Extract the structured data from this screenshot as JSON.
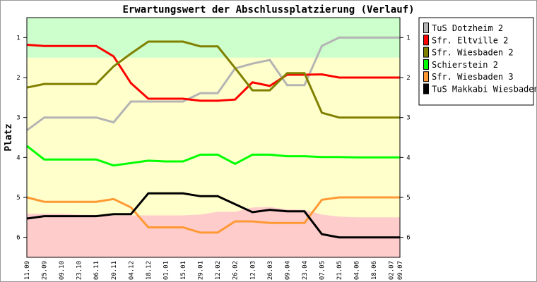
{
  "chart_data": {
    "type": "line",
    "title": "Erwartungswert der Abschlussplatzierung (Verlauf)",
    "xlabel": "",
    "ylabel": "Platz",
    "ylim": [
      0.5,
      6.5
    ],
    "y_inverted": true,
    "yticks": [
      1,
      2,
      3,
      4,
      5,
      6
    ],
    "grid": false,
    "legend_position": "right",
    "x": [
      "11.09",
      "25.09",
      "09.10",
      "23.10",
      "06.11",
      "20.11",
      "04.12",
      "18.12",
      "01.01",
      "15.01",
      "29.01",
      "12.02",
      "26.02",
      "12.03",
      "26.03",
      "09.04",
      "23.04",
      "07.05",
      "21.05",
      "04.06",
      "18.06",
      "02.07",
      "09.07"
    ],
    "x_days": [
      0,
      14,
      28,
      42,
      56,
      70,
      84,
      98,
      112,
      126,
      140,
      154,
      168,
      182,
      196,
      210,
      224,
      238,
      252,
      266,
      280,
      294,
      301
    ],
    "zones": [
      {
        "name": "promotion",
        "color": "#ccffcc",
        "from": 0.5,
        "to": 1.5
      },
      {
        "name": "midfield",
        "color": "#ffffcc",
        "from": 1.5,
        "to": "relegation"
      },
      {
        "name": "relegation",
        "color": "#ffcccc",
        "boundary": [
          5.41,
          5.41,
          5.41,
          5.43,
          5.44,
          5.45,
          5.45,
          5.45,
          5.45,
          5.45,
          5.43,
          5.36,
          5.36,
          5.25,
          5.24,
          5.3,
          5.31,
          5.43,
          5.48,
          5.5,
          5.5,
          5.5,
          5.5
        ],
        "to": 6.5
      }
    ],
    "series": [
      {
        "name": "TuS Dotzheim 2",
        "color": "#b4b4b4",
        "values": [
          3.32,
          3.0,
          3.0,
          3.0,
          3.0,
          3.12,
          2.6,
          2.6,
          2.6,
          2.6,
          2.39,
          2.39,
          1.77,
          1.65,
          1.56,
          2.19,
          2.19,
          1.21,
          1.0,
          1.0,
          1.0,
          1.0,
          1.0
        ]
      },
      {
        "name": "Sfr. Eltville 2",
        "color": "#ff0000",
        "values": [
          1.18,
          1.21,
          1.21,
          1.21,
          1.21,
          1.47,
          2.14,
          2.53,
          2.53,
          2.53,
          2.58,
          2.58,
          2.55,
          2.12,
          2.21,
          1.93,
          1.93,
          1.92,
          2.0,
          2.0,
          2.0,
          2.0,
          2.0
        ]
      },
      {
        "name": "Sfr. Wiesbaden 2",
        "color": "#808000",
        "values": [
          2.25,
          2.16,
          2.16,
          2.16,
          2.16,
          1.72,
          1.4,
          1.1,
          1.1,
          1.1,
          1.22,
          1.22,
          1.76,
          2.32,
          2.32,
          1.89,
          1.89,
          2.88,
          3.0,
          3.0,
          3.0,
          3.0,
          3.0
        ]
      },
      {
        "name": "Schierstein 2",
        "color": "#00ff00",
        "values": [
          3.71,
          4.05,
          4.05,
          4.05,
          4.05,
          4.2,
          4.14,
          4.08,
          4.1,
          4.1,
          3.93,
          3.93,
          4.16,
          3.93,
          3.93,
          3.97,
          3.97,
          3.99,
          3.99,
          4.0,
          4.0,
          4.0,
          4.0
        ]
      },
      {
        "name": "Sfr. Wiesbaden 3",
        "color": "#ff9933",
        "values": [
          5.0,
          5.11,
          5.11,
          5.11,
          5.11,
          5.04,
          5.25,
          5.75,
          5.75,
          5.75,
          5.88,
          5.88,
          5.6,
          5.6,
          5.64,
          5.64,
          5.64,
          5.06,
          5.0,
          5.0,
          5.0,
          5.0,
          5.0
        ]
      },
      {
        "name": "TuS Makkabi Wiesbaden 1",
        "color": "#000000",
        "values": [
          5.53,
          5.47,
          5.47,
          5.47,
          5.47,
          5.42,
          5.42,
          4.9,
          4.9,
          4.9,
          4.97,
          4.97,
          5.17,
          5.37,
          5.31,
          5.35,
          5.35,
          5.92,
          6.0,
          6.0,
          6.0,
          6.0,
          6.0
        ]
      }
    ]
  }
}
